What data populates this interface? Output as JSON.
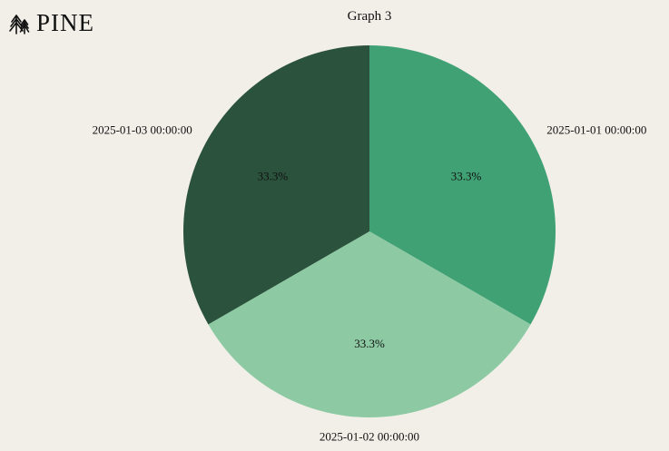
{
  "brand": {
    "name": "PINE",
    "icon": "pine-trees-icon"
  },
  "chart_data": {
    "type": "pie",
    "title": "Graph 3",
    "categories": [
      "2025-01-01 00:00:00",
      "2025-01-02 00:00:00",
      "2025-01-03 00:00:00"
    ],
    "values": [
      33.3,
      33.3,
      33.3
    ],
    "value_labels": [
      "33.3%",
      "33.3%",
      "33.3%"
    ],
    "colors": [
      "#3fa174",
      "#8dcaa3",
      "#2b523c"
    ],
    "start_angle_deg": 90,
    "direction": "clockwise"
  }
}
